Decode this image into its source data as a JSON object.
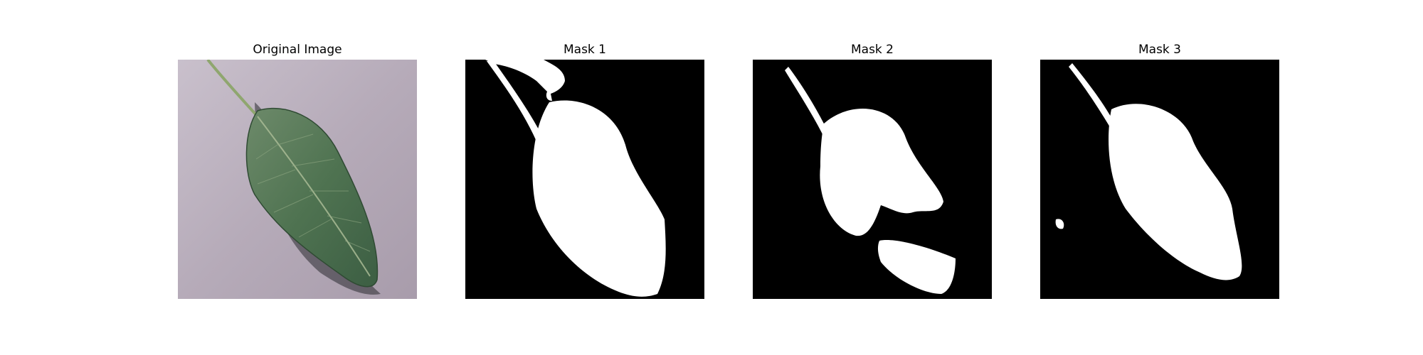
{
  "panels": [
    {
      "title": "Original Image"
    },
    {
      "title": "Mask 1"
    },
    {
      "title": "Mask 2"
    },
    {
      "title": "Mask 3"
    }
  ],
  "colors": {
    "background_paper": "#b8aeba",
    "leaf": "#4f7351",
    "mask_background": "#000000",
    "mask_foreground": "#ffffff"
  }
}
